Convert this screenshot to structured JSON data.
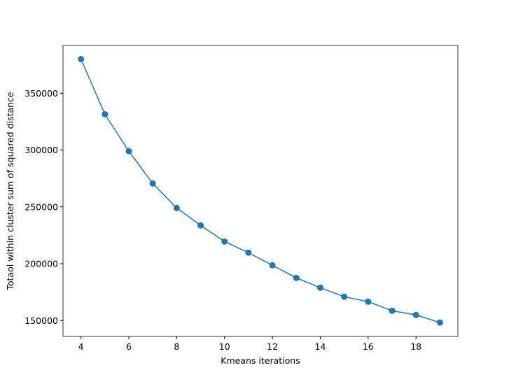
{
  "chart_data": {
    "type": "line",
    "x_label": "Kmeans iterations",
    "y_label": "Totaol within cluster sum of squared distance",
    "x": [
      4,
      5,
      6,
      7,
      8,
      9,
      10,
      11,
      12,
      13,
      14,
      15,
      16,
      17,
      18,
      19
    ],
    "series": [
      {
        "color": "#1f77b4",
        "marker": "o",
        "values": [
          380000,
          331500,
          299000,
          270600,
          249000,
          233700,
          219500,
          209700,
          198600,
          187500,
          178900,
          170900,
          166600,
          158600,
          154900,
          148200
        ]
      }
    ],
    "xlim": [
      3.25,
      19.75
    ],
    "xticks": [
      4,
      6,
      8,
      10,
      12,
      14,
      16,
      18
    ],
    "ylim": [
      136000,
      392000
    ],
    "yticks": [
      150000,
      200000,
      250000,
      300000,
      350000
    ],
    "grid": false
  }
}
